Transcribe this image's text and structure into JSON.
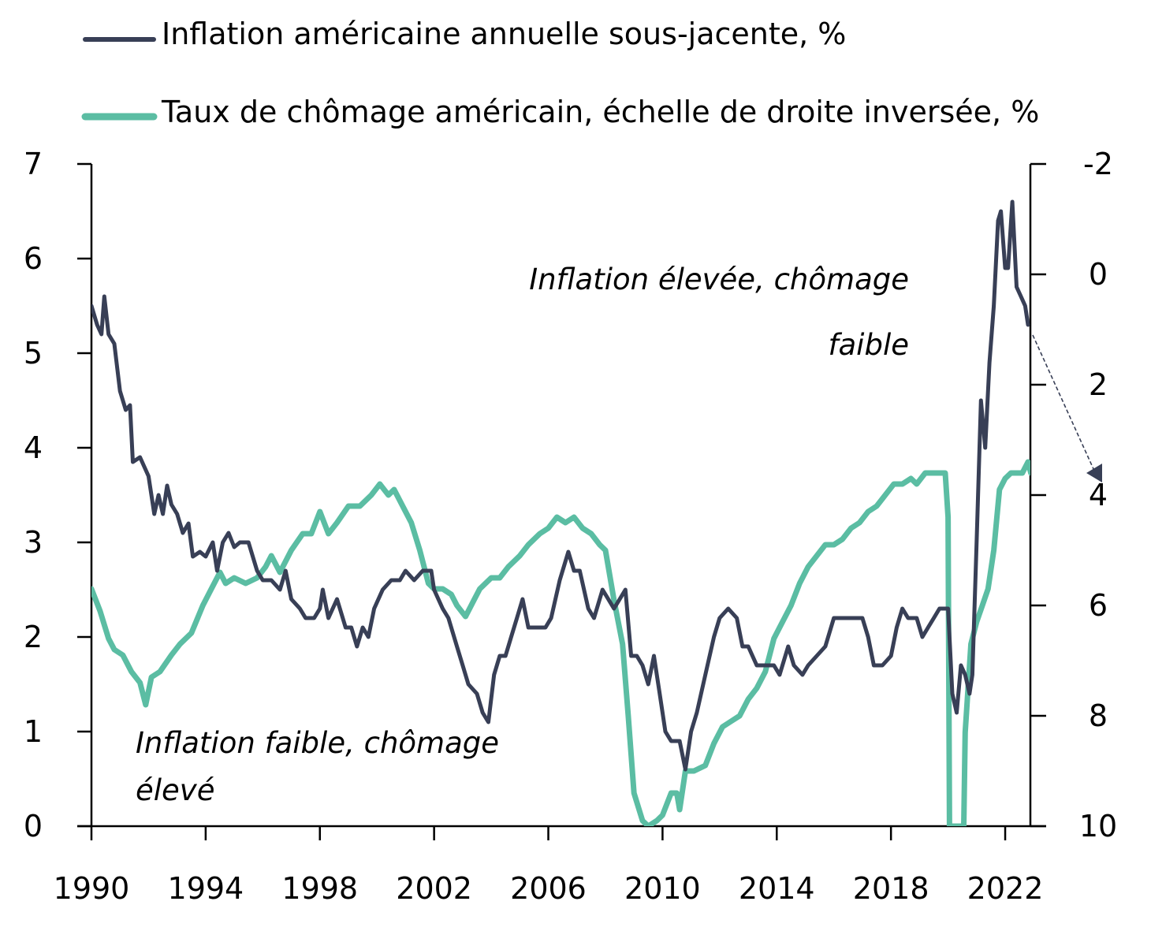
{
  "chart_data": {
    "type": "line",
    "title": "",
    "xlabel": "",
    "ylabel_left": "",
    "ylabel_right": "",
    "x_ticks": [
      "1990",
      "1994",
      "1998",
      "2002",
      "2006",
      "2010",
      "2014",
      "2018",
      "2022"
    ],
    "x_tick_years": [
      1990,
      1994,
      1998,
      2002,
      2006,
      2010,
      2014,
      2018,
      2022
    ],
    "xlim": [
      1990,
      2022.9
    ],
    "y_left": {
      "ticks": [
        "0",
        "1",
        "2",
        "3",
        "4",
        "5",
        "6",
        "7"
      ],
      "tick_values": [
        0,
        1,
        2,
        3,
        4,
        5,
        6,
        7
      ],
      "ylim": [
        0,
        7
      ],
      "inverted": false
    },
    "y_right": {
      "ticks": [
        "-2",
        "0",
        "2",
        "4",
        "6",
        "8",
        "10"
      ],
      "tick_values": [
        -2,
        0,
        2,
        4,
        6,
        8,
        10
      ],
      "ylim": [
        -2,
        10
      ],
      "inverted": true
    },
    "grid": false,
    "legend_placement": "top-left",
    "series": [
      {
        "name": "Inflation américaine annuelle sous-jacente, %",
        "axis": "left",
        "color": "#383f56",
        "x": [
          1990.0,
          1990.2,
          1990.35,
          1990.45,
          1990.6,
          1990.8,
          1991.0,
          1991.2,
          1991.35,
          1991.45,
          1991.7,
          1992.0,
          1992.2,
          1992.35,
          1992.5,
          1992.65,
          1992.8,
          1993.0,
          1993.2,
          1993.4,
          1993.55,
          1993.8,
          1994.0,
          1994.25,
          1994.4,
          1994.6,
          1994.8,
          1995.0,
          1995.2,
          1995.5,
          1995.8,
          1996.0,
          1996.3,
          1996.6,
          1996.8,
          1997.0,
          1997.3,
          1997.5,
          1997.8,
          1998.0,
          1998.1,
          1998.3,
          1998.6,
          1998.9,
          1999.1,
          1999.3,
          1999.5,
          1999.7,
          1999.9,
          2000.2,
          2000.5,
          2000.8,
          2001.0,
          2001.3,
          2001.6,
          2001.9,
          2002.0,
          2002.3,
          2002.5,
          2002.8,
          2003.0,
          2003.2,
          2003.5,
          2003.7,
          2003.9,
          2004.1,
          2004.3,
          2004.5,
          2004.7,
          2004.9,
          2005.1,
          2005.3,
          2005.6,
          2005.9,
          2006.1,
          2006.4,
          2006.7,
          2006.9,
          2007.1,
          2007.4,
          2007.6,
          2007.9,
          2008.1,
          2008.3,
          2008.5,
          2008.7,
          2008.9,
          2009.1,
          2009.3,
          2009.5,
          2009.7,
          2009.9,
          2010.1,
          2010.3,
          2010.6,
          2010.8,
          2011.0,
          2011.2,
          2011.5,
          2011.8,
          2012.0,
          2012.3,
          2012.6,
          2012.8,
          2013.0,
          2013.3,
          2013.6,
          2013.9,
          2014.1,
          2014.4,
          2014.6,
          2014.9,
          2015.1,
          2015.4,
          2015.7,
          2016.0,
          2016.2,
          2016.5,
          2016.8,
          2017.0,
          2017.2,
          2017.4,
          2017.7,
          2018.0,
          2018.2,
          2018.4,
          2018.6,
          2018.9,
          2019.1,
          2019.3,
          2019.5,
          2019.7,
          2019.9,
          2020.0,
          2020.15,
          2020.3,
          2020.45,
          2020.6,
          2020.75,
          2020.85,
          2021.0,
          2021.15,
          2021.3,
          2021.45,
          2021.6,
          2021.75,
          2021.85,
          2022.0,
          2022.1,
          2022.25,
          2022.4,
          2022.55,
          2022.7,
          2022.8
        ],
        "values": [
          5.5,
          5.3,
          5.2,
          5.6,
          5.2,
          5.1,
          4.6,
          4.4,
          4.45,
          3.85,
          3.9,
          3.7,
          3.3,
          3.5,
          3.3,
          3.6,
          3.4,
          3.3,
          3.1,
          3.2,
          2.85,
          2.9,
          2.85,
          3.0,
          2.7,
          3.0,
          3.1,
          2.95,
          3.0,
          3.0,
          2.7,
          2.6,
          2.6,
          2.5,
          2.7,
          2.4,
          2.3,
          2.2,
          2.2,
          2.3,
          2.5,
          2.2,
          2.4,
          2.1,
          2.1,
          1.9,
          2.1,
          2.0,
          2.3,
          2.5,
          2.6,
          2.6,
          2.7,
          2.6,
          2.7,
          2.7,
          2.5,
          2.3,
          2.2,
          1.9,
          1.7,
          1.5,
          1.4,
          1.2,
          1.1,
          1.6,
          1.8,
          1.8,
          2.0,
          2.2,
          2.4,
          2.1,
          2.1,
          2.1,
          2.2,
          2.6,
          2.9,
          2.7,
          2.7,
          2.3,
          2.2,
          2.5,
          2.4,
          2.3,
          2.4,
          2.5,
          1.8,
          1.8,
          1.7,
          1.5,
          1.8,
          1.4,
          1.0,
          0.9,
          0.9,
          0.6,
          1.0,
          1.2,
          1.6,
          2.0,
          2.2,
          2.3,
          2.2,
          1.9,
          1.9,
          1.7,
          1.7,
          1.7,
          1.6,
          1.9,
          1.7,
          1.6,
          1.7,
          1.8,
          1.9,
          2.2,
          2.2,
          2.2,
          2.2,
          2.2,
          2.0,
          1.7,
          1.7,
          1.8,
          2.1,
          2.3,
          2.2,
          2.2,
          2.0,
          2.1,
          2.2,
          2.3,
          2.3,
          2.3,
          1.4,
          1.2,
          1.7,
          1.6,
          1.4,
          1.6,
          3.0,
          4.5,
          4.0,
          4.9,
          5.5,
          6.4,
          6.5,
          5.9,
          5.9,
          6.6,
          5.7,
          5.6,
          5.5,
          5.3
        ]
      },
      {
        "name": "Taux de chômage américain, échelle de droite inversée, %",
        "axis": "right",
        "color": "#5bbda3",
        "x": [
          1990.0,
          1990.3,
          1990.6,
          1990.8,
          1991.1,
          1991.4,
          1991.7,
          1991.9,
          1992.1,
          1992.4,
          1992.8,
          1993.1,
          1993.5,
          1993.9,
          1994.2,
          1994.5,
          1994.7,
          1995.0,
          1995.4,
          1995.8,
          1996.1,
          1996.3,
          1996.6,
          1997.0,
          1997.4,
          1997.7,
          1998.0,
          1998.3,
          1998.6,
          1999.0,
          1999.4,
          1999.8,
          2000.1,
          2000.4,
          2000.6,
          2000.9,
          2001.2,
          2001.5,
          2001.8,
          2002.0,
          2002.3,
          2002.6,
          2002.8,
          2003.1,
          2003.4,
          2003.6,
          2004.0,
          2004.3,
          2004.6,
          2005.0,
          2005.3,
          2005.7,
          2006.0,
          2006.3,
          2006.6,
          2006.9,
          2007.2,
          2007.5,
          2007.8,
          2008.0,
          2008.3,
          2008.6,
          2008.8,
          2009.0,
          2009.3,
          2009.5,
          2009.8,
          2010.0,
          2010.3,
          2010.5,
          2010.6,
          2010.8,
          2011.1,
          2011.5,
          2011.8,
          2012.1,
          2012.4,
          2012.7,
          2013.0,
          2013.3,
          2013.6,
          2013.9,
          2014.2,
          2014.5,
          2014.8,
          2015.1,
          2015.4,
          2015.7,
          2016.0,
          2016.3,
          2016.6,
          2016.9,
          2017.2,
          2017.5,
          2017.8,
          2018.1,
          2018.4,
          2018.7,
          2018.9,
          2019.2,
          2019.5,
          2019.7,
          2019.9,
          2020.0,
          2020.05,
          2020.55,
          2020.6,
          2020.8,
          2021.0,
          2021.2,
          2021.4,
          2021.6,
          2021.8,
          2022.0,
          2022.2,
          2022.4,
          2022.6,
          2022.8,
          2022.9
        ],
        "values": [
          5.7,
          6.1,
          6.6,
          6.8,
          6.9,
          7.2,
          7.4,
          7.8,
          7.3,
          7.2,
          6.9,
          6.7,
          6.5,
          6.0,
          5.7,
          5.4,
          5.6,
          5.5,
          5.6,
          5.5,
          5.3,
          5.1,
          5.4,
          5.0,
          4.7,
          4.7,
          4.3,
          4.7,
          4.5,
          4.2,
          4.2,
          4.0,
          3.8,
          4.0,
          3.9,
          4.2,
          4.5,
          5.0,
          5.6,
          5.7,
          5.7,
          5.8,
          6.0,
          6.2,
          5.9,
          5.7,
          5.5,
          5.5,
          5.3,
          5.1,
          4.9,
          4.7,
          4.6,
          4.4,
          4.5,
          4.4,
          4.6,
          4.7,
          4.9,
          5.0,
          5.9,
          6.7,
          8.0,
          9.4,
          9.9,
          10.0,
          9.9,
          9.8,
          9.4,
          9.4,
          9.7,
          9.0,
          9.0,
          8.9,
          8.5,
          8.2,
          8.1,
          8.0,
          7.7,
          7.5,
          7.2,
          6.6,
          6.3,
          6.0,
          5.6,
          5.3,
          5.1,
          4.9,
          4.9,
          4.8,
          4.6,
          4.5,
          4.3,
          4.2,
          4.0,
          3.8,
          3.8,
          3.7,
          3.8,
          3.6,
          3.6,
          3.6,
          3.6,
          4.4,
          10.0,
          10.0,
          8.3,
          6.7,
          6.3,
          6.0,
          5.7,
          5.0,
          3.9,
          3.7,
          3.6,
          3.6,
          3.6,
          3.4,
          3.6
        ]
      }
    ],
    "annotations": [
      {
        "text_lines": [
          "Inflation élevée, chômage",
          "faible"
        ],
        "align": "right",
        "region": "upper-right"
      },
      {
        "text_lines": [
          "Inflation faible, chômage",
          "élevé"
        ],
        "align": "left",
        "region": "lower-left"
      }
    ],
    "arrow": {
      "description": "dashed arrow from end of inflation series pointing down-right toward right axis value 4",
      "color": "#383f56"
    }
  }
}
